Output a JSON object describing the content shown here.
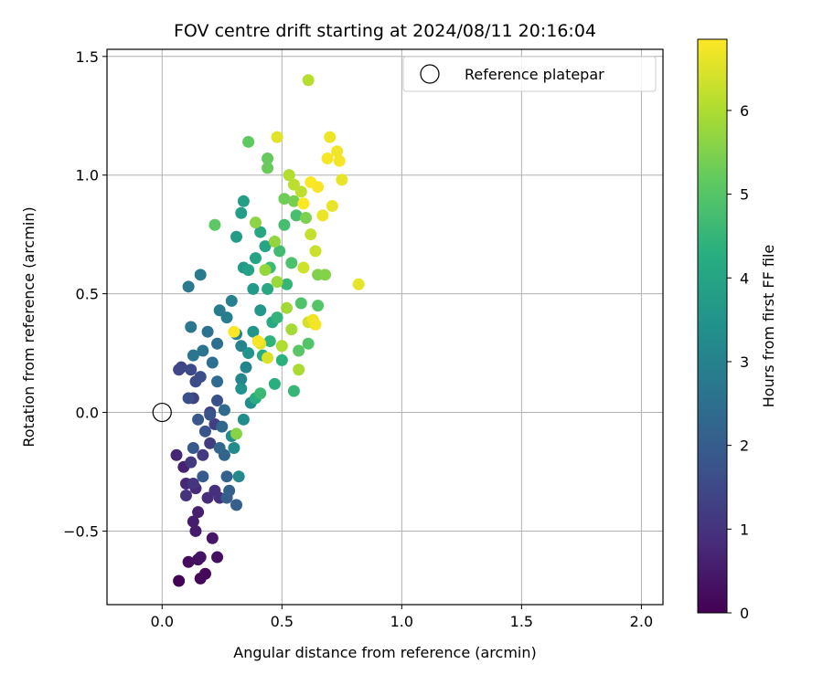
{
  "chart_data": {
    "type": "scatter",
    "title": "FOV centre drift starting at 2024/08/11 20:16:04",
    "xlabel": "Angular distance from reference (arcmin)",
    "ylabel": "Rotation from reference (arcmin)",
    "xlim": [
      -0.23,
      2.09
    ],
    "ylim": [
      -0.81,
      1.53
    ],
    "xticks": [
      0.0,
      0.5,
      1.0,
      1.5,
      2.0
    ],
    "xtick_labels": [
      "0.0",
      "0.5",
      "1.0",
      "1.5",
      "2.0"
    ],
    "yticks": [
      -0.5,
      0.0,
      0.5,
      1.0,
      1.5
    ],
    "ytick_labels": [
      "−0.5",
      "0.0",
      "0.5",
      "1.0",
      "1.5"
    ],
    "grid": true,
    "legend": {
      "position": "top-right",
      "entries": [
        "Reference platepar"
      ]
    },
    "reference_point": {
      "x": 0.0,
      "y": 0.0,
      "marker": "open-circle"
    },
    "colorbar": {
      "label": "Hours from first FF file",
      "min": 0,
      "max": 6.85,
      "ticks": [
        0,
        1,
        2,
        3,
        4,
        5,
        6
      ],
      "tick_labels": [
        "0",
        "1",
        "2",
        "3",
        "4",
        "5",
        "6"
      ],
      "colormap": "viridis"
    },
    "point_columns": [
      "x_arcmin",
      "y_arcmin",
      "hours"
    ],
    "points": [
      [
        0.07,
        -0.71,
        0.05
      ],
      [
        0.16,
        -0.7,
        0.1
      ],
      [
        0.18,
        -0.68,
        0.15
      ],
      [
        0.11,
        -0.63,
        0.2
      ],
      [
        0.15,
        -0.62,
        0.25
      ],
      [
        0.23,
        -0.61,
        0.3
      ],
      [
        0.16,
        -0.61,
        0.35
      ],
      [
        0.21,
        -0.53,
        0.4
      ],
      [
        0.14,
        -0.5,
        0.5
      ],
      [
        0.13,
        -0.46,
        0.55
      ],
      [
        0.15,
        -0.42,
        0.6
      ],
      [
        0.09,
        -0.23,
        0.65
      ],
      [
        0.06,
        -0.18,
        0.7
      ],
      [
        0.1,
        -0.3,
        0.75
      ],
      [
        0.14,
        -0.32,
        0.8
      ],
      [
        0.19,
        -0.36,
        0.85
      ],
      [
        0.22,
        -0.33,
        0.9
      ],
      [
        0.24,
        -0.36,
        0.95
      ],
      [
        0.1,
        -0.35,
        1.0
      ],
      [
        0.13,
        -0.3,
        1.05
      ],
      [
        0.12,
        -0.21,
        1.1
      ],
      [
        0.17,
        -0.18,
        1.15
      ],
      [
        0.2,
        -0.13,
        1.2
      ],
      [
        0.22,
        -0.05,
        1.25
      ],
      [
        0.2,
        0.0,
        1.3
      ],
      [
        0.13,
        0.06,
        1.35
      ],
      [
        0.08,
        0.19,
        1.4
      ],
      [
        0.07,
        0.18,
        1.45
      ],
      [
        0.12,
        0.18,
        1.5
      ],
      [
        0.14,
        0.13,
        1.55
      ],
      [
        0.16,
        0.15,
        1.6
      ],
      [
        0.11,
        0.06,
        1.65
      ],
      [
        0.23,
        0.05,
        1.7
      ],
      [
        0.2,
        -0.01,
        1.75
      ],
      [
        0.18,
        -0.08,
        1.8
      ],
      [
        0.15,
        -0.03,
        1.85
      ],
      [
        0.13,
        -0.15,
        1.9
      ],
      [
        0.17,
        -0.27,
        1.95
      ],
      [
        0.27,
        -0.36,
        2.0
      ],
      [
        0.31,
        -0.39,
        2.05
      ],
      [
        0.28,
        -0.33,
        2.1
      ],
      [
        0.27,
        -0.27,
        2.15
      ],
      [
        0.26,
        -0.18,
        2.2
      ],
      [
        0.24,
        -0.15,
        2.25
      ],
      [
        0.25,
        -0.06,
        2.3
      ],
      [
        0.26,
        0.01,
        2.35
      ],
      [
        0.23,
        0.13,
        2.4
      ],
      [
        0.21,
        0.21,
        2.45
      ],
      [
        0.23,
        0.29,
        2.5
      ],
      [
        0.19,
        0.34,
        2.55
      ],
      [
        0.17,
        0.26,
        2.6
      ],
      [
        0.13,
        0.24,
        2.65
      ],
      [
        0.12,
        0.36,
        2.7
      ],
      [
        0.11,
        0.53,
        2.75
      ],
      [
        0.16,
        0.58,
        2.8
      ],
      [
        0.24,
        0.43,
        2.85
      ],
      [
        0.27,
        0.4,
        2.9
      ],
      [
        0.29,
        0.47,
        2.95
      ],
      [
        0.31,
        0.33,
        3.0
      ],
      [
        0.33,
        0.28,
        3.05
      ],
      [
        0.35,
        0.19,
        3.1
      ],
      [
        0.33,
        0.14,
        3.15
      ],
      [
        0.32,
        -0.27,
        3.2
      ],
      [
        0.3,
        -0.15,
        3.25
      ],
      [
        0.29,
        -0.1,
        3.3
      ],
      [
        0.34,
        -0.03,
        3.35
      ],
      [
        0.37,
        0.04,
        3.4
      ],
      [
        0.33,
        0.1,
        3.45
      ],
      [
        0.36,
        0.25,
        3.5
      ],
      [
        0.38,
        0.34,
        3.55
      ],
      [
        0.41,
        0.43,
        3.6
      ],
      [
        0.38,
        0.52,
        3.65
      ],
      [
        0.34,
        0.61,
        3.7
      ],
      [
        0.31,
        0.74,
        3.75
      ],
      [
        0.33,
        0.84,
        3.8
      ],
      [
        0.34,
        0.89,
        3.85
      ],
      [
        0.36,
        0.6,
        3.9
      ],
      [
        0.39,
        0.65,
        3.95
      ],
      [
        0.43,
        0.7,
        4.0
      ],
      [
        0.41,
        0.76,
        4.05
      ],
      [
        0.44,
        0.52,
        4.1
      ],
      [
        0.46,
        0.38,
        4.15
      ],
      [
        0.42,
        0.24,
        4.2
      ],
      [
        0.39,
        0.06,
        4.25
      ],
      [
        0.47,
        0.12,
        4.3
      ],
      [
        0.5,
        0.22,
        4.35
      ],
      [
        0.45,
        0.3,
        4.4
      ],
      [
        0.48,
        0.4,
        4.45
      ],
      [
        0.52,
        0.54,
        4.5
      ],
      [
        0.55,
        0.09,
        4.55
      ],
      [
        0.41,
        0.08,
        4.6
      ],
      [
        0.45,
        0.61,
        4.65
      ],
      [
        0.49,
        0.68,
        4.7
      ],
      [
        0.51,
        0.79,
        4.75
      ],
      [
        0.56,
        0.83,
        4.8
      ],
      [
        0.54,
        0.63,
        4.85
      ],
      [
        0.58,
        0.46,
        4.9
      ],
      [
        0.61,
        0.29,
        4.95
      ],
      [
        0.65,
        0.45,
        5.0
      ],
      [
        0.57,
        0.26,
        5.05
      ],
      [
        0.22,
        0.79,
        5.1
      ],
      [
        0.36,
        1.14,
        5.15
      ],
      [
        0.44,
        1.07,
        5.2
      ],
      [
        0.44,
        1.03,
        5.25
      ],
      [
        0.51,
        0.9,
        5.3
      ],
      [
        0.53,
        1.0,
        5.35
      ],
      [
        0.55,
        0.89,
        5.4
      ],
      [
        0.6,
        0.82,
        5.45
      ],
      [
        0.65,
        0.58,
        5.5
      ],
      [
        0.68,
        0.58,
        5.55
      ],
      [
        0.31,
        -0.09,
        5.6
      ],
      [
        0.39,
        0.8,
        5.65
      ],
      [
        0.47,
        0.72,
        5.7
      ],
      [
        0.43,
        0.6,
        5.75
      ],
      [
        0.48,
        0.55,
        5.8
      ],
      [
        0.52,
        0.44,
        5.85
      ],
      [
        0.54,
        0.35,
        5.9
      ],
      [
        0.57,
        0.18,
        5.95
      ],
      [
        0.5,
        0.28,
        6.0
      ],
      [
        0.53,
        1.0,
        6.05
      ],
      [
        0.61,
        1.4,
        6.1
      ],
      [
        0.55,
        0.96,
        6.15
      ],
      [
        0.58,
        0.93,
        6.2
      ],
      [
        0.62,
        0.75,
        6.25
      ],
      [
        0.64,
        0.68,
        6.3
      ],
      [
        0.59,
        0.61,
        6.35
      ],
      [
        0.61,
        0.38,
        6.4
      ],
      [
        0.44,
        0.23,
        6.45
      ],
      [
        0.41,
        0.29,
        6.5
      ],
      [
        0.48,
        1.16,
        6.55
      ],
      [
        0.82,
        0.54,
        6.6
      ],
      [
        0.75,
        0.98,
        6.62
      ],
      [
        0.71,
        0.87,
        6.65
      ],
      [
        0.67,
        0.83,
        6.67
      ],
      [
        0.7,
        1.16,
        6.7
      ],
      [
        0.73,
        1.1,
        6.72
      ],
      [
        0.74,
        1.06,
        6.75
      ],
      [
        0.69,
        1.07,
        6.77
      ],
      [
        0.65,
        0.95,
        6.8
      ],
      [
        0.62,
        0.97,
        6.82
      ],
      [
        0.59,
        0.88,
        6.84
      ],
      [
        0.3,
        0.34,
        6.85
      ],
      [
        0.4,
        0.3,
        6.78
      ],
      [
        0.63,
        0.39,
        6.7
      ],
      [
        0.64,
        0.37,
        6.74
      ]
    ]
  }
}
